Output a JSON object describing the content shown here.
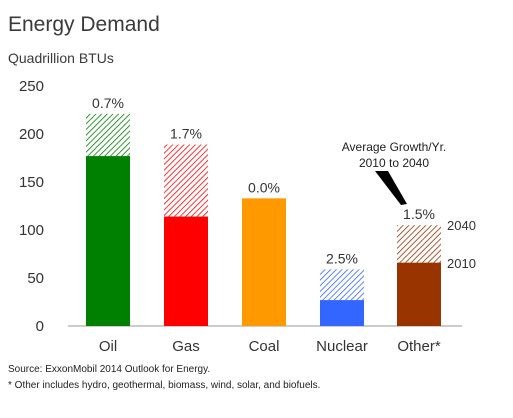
{
  "chart_data": {
    "type": "bar",
    "title": "Energy Demand",
    "subtitle": "Quadrillion BTUs",
    "categories": [
      "Oil",
      "Gas",
      "Coal",
      "Nuclear",
      "Other*"
    ],
    "series": [
      {
        "name": "2010",
        "values": [
          177,
          114,
          133,
          27,
          66
        ]
      },
      {
        "name": "2040",
        "values": [
          221,
          189,
          133,
          59,
          105
        ]
      }
    ],
    "growth_labels": [
      "0.7%",
      "1.7%",
      "0.0%",
      "2.5%",
      "1.5%"
    ],
    "colors": [
      "#008000",
      "#ff0000",
      "#ff9900",
      "#3366ff",
      "#993300"
    ],
    "ylim": [
      0,
      250
    ],
    "yticks": [
      "0",
      "50",
      "100",
      "150",
      "200",
      "250"
    ],
    "ytick_values": [
      0,
      50,
      100,
      150,
      200,
      250
    ],
    "legend_labels": {
      "top": "2040",
      "bottom": "2010"
    },
    "annotation": {
      "line1": "Average Growth/Yr.",
      "line2": "2010 to 2040"
    },
    "gridlines": false
  },
  "footer": {
    "source": "Source:  ExxonMobil 2014 Outlook for Energy.",
    "note": "*  Other includes hydro, geothermal, biomass, wind, solar, and biofuels."
  }
}
